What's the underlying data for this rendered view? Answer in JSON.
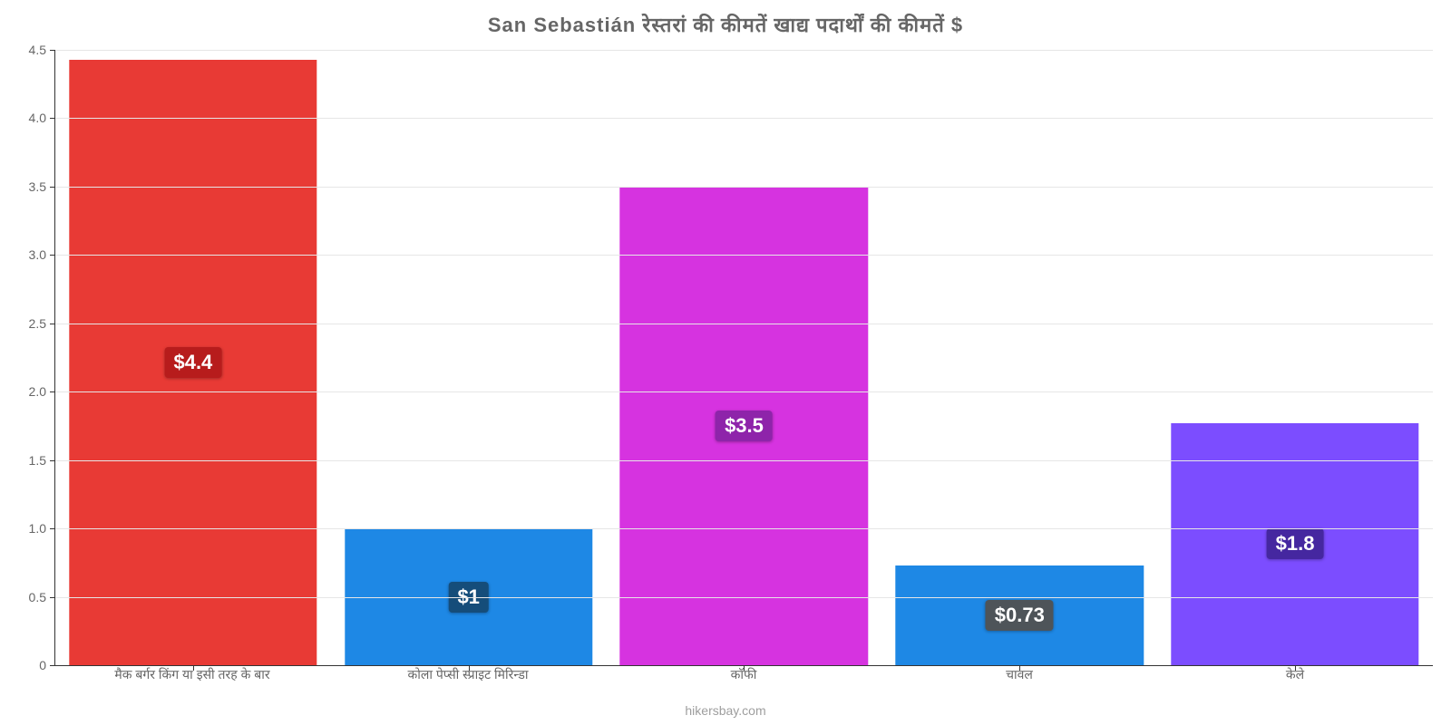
{
  "chart": {
    "type": "bar",
    "title": "San Sebastián रेस्तरां की कीमतें खाद्य पदार्थों की कीमतें $",
    "title_fontsize": 22,
    "title_color": "#666666",
    "footer": "hikersbay.com",
    "footer_color": "#9e9e9e",
    "background_color": "#ffffff",
    "grid_color": "#e6e6e6",
    "axis_color": "#333333",
    "tick_color": "#666666",
    "label_fontsize": 14,
    "ylim": [
      0,
      4.5
    ],
    "ytick_step": 0.5,
    "yticks": [
      "0",
      "0.5",
      "1.0",
      "1.5",
      "2.0",
      "2.5",
      "3.0",
      "3.5",
      "4.0",
      "4.5"
    ],
    "bar_width_pct": 90,
    "value_label_fontsize": 22,
    "bars": [
      {
        "category": "मैक बर्गर किंग या इसी तरह के बार",
        "value": 4.43,
        "display": "$4.4",
        "color": "#e83a35",
        "label_bg": "#b71c1c"
      },
      {
        "category": "कोला पेप्सी स्प्राइट मिरिन्डा",
        "value": 1.0,
        "display": "$1",
        "color": "#1e88e5",
        "label_bg": "#154d7a"
      },
      {
        "category": "कॉफी",
        "value": 3.5,
        "display": "$3.5",
        "color": "#d633e0",
        "label_bg": "#8e24aa"
      },
      {
        "category": "चावल",
        "value": 0.73,
        "display": "$0.73",
        "color": "#1e88e5",
        "label_bg": "#4e5459"
      },
      {
        "category": "केले",
        "value": 1.77,
        "display": "$1.8",
        "color": "#7c4dff",
        "label_bg": "#4527a0"
      }
    ]
  }
}
